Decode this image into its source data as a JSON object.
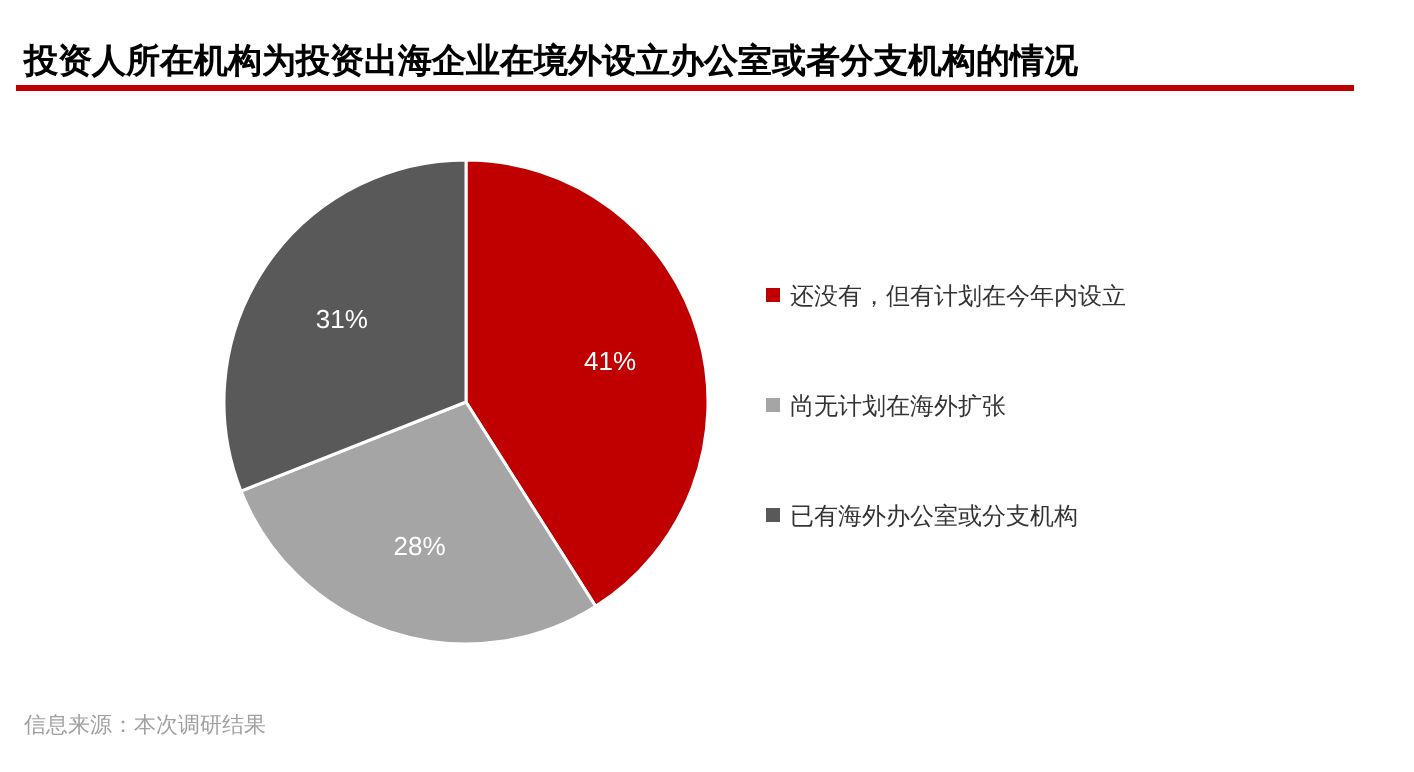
{
  "chart_data": {
    "type": "pie",
    "title": "投资人所在机构为投资出海企业在境外设立办公室或者分支机构的情况",
    "categories": [
      "还没有，但有计划在今年内设立",
      "尚无计划在海外扩张",
      "已有海外办公室或分支机构"
    ],
    "values": [
      41,
      28,
      31
    ],
    "colors": [
      "#c00000",
      "#a5a5a5",
      "#595959"
    ],
    "value_labels": [
      "41%",
      "28%",
      "31%"
    ],
    "legend": "right",
    "annotations": [
      "信息来源：本次调研结果"
    ]
  }
}
